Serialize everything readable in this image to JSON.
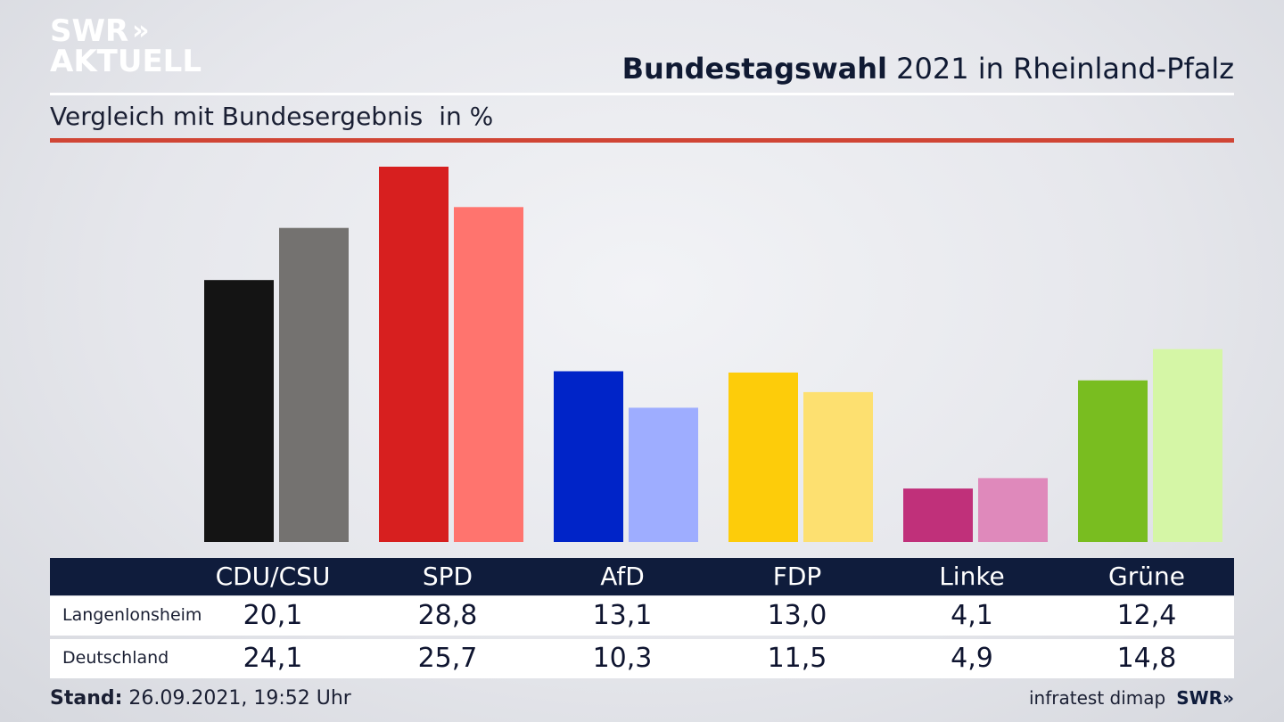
{
  "logo": {
    "line1": "SWR",
    "line1_chevrons": "»",
    "line2": "AKTUELL"
  },
  "header": {
    "title_bold": "Bundestagswahl",
    "title_rest": "2021 in Rheinland-Pfalz"
  },
  "subtitle": {
    "text": "Vergleich mit Bundesergebnis",
    "unit": "in %"
  },
  "chart_data": {
    "type": "bar",
    "categories": [
      "CDU/CSU",
      "SPD",
      "AfD",
      "FDP",
      "Linke",
      "Grüne"
    ],
    "series": [
      {
        "name": "Langenlonsheim",
        "values": [
          20.1,
          28.8,
          13.1,
          13.0,
          4.1,
          12.4
        ],
        "display": [
          "20,1",
          "28,8",
          "13,1",
          "13,0",
          "4,1",
          "12,4"
        ]
      },
      {
        "name": "Deutschland",
        "values": [
          24.1,
          25.7,
          10.3,
          11.5,
          4.9,
          14.8
        ],
        "display": [
          "24,1",
          "25,7",
          "10,3",
          "11,5",
          "4,9",
          "14,8"
        ]
      }
    ],
    "colors": {
      "Langenlonsheim": [
        "#141414",
        "#d71f1f",
        "#0024c8",
        "#fdcc0a",
        "#c0307a",
        "#79bd20"
      ],
      "Deutschland": [
        "#747270",
        "#ff746e",
        "#9eadff",
        "#fde070",
        "#df89bb",
        "#d5f6a6"
      ]
    },
    "ylim": [
      0,
      28.8
    ],
    "grid": false
  },
  "footer": {
    "stand_label": "Stand:",
    "stand_value": "26.09.2021, 19:52 Uhr",
    "source": "infratest dimap",
    "brand": "SWR»"
  }
}
